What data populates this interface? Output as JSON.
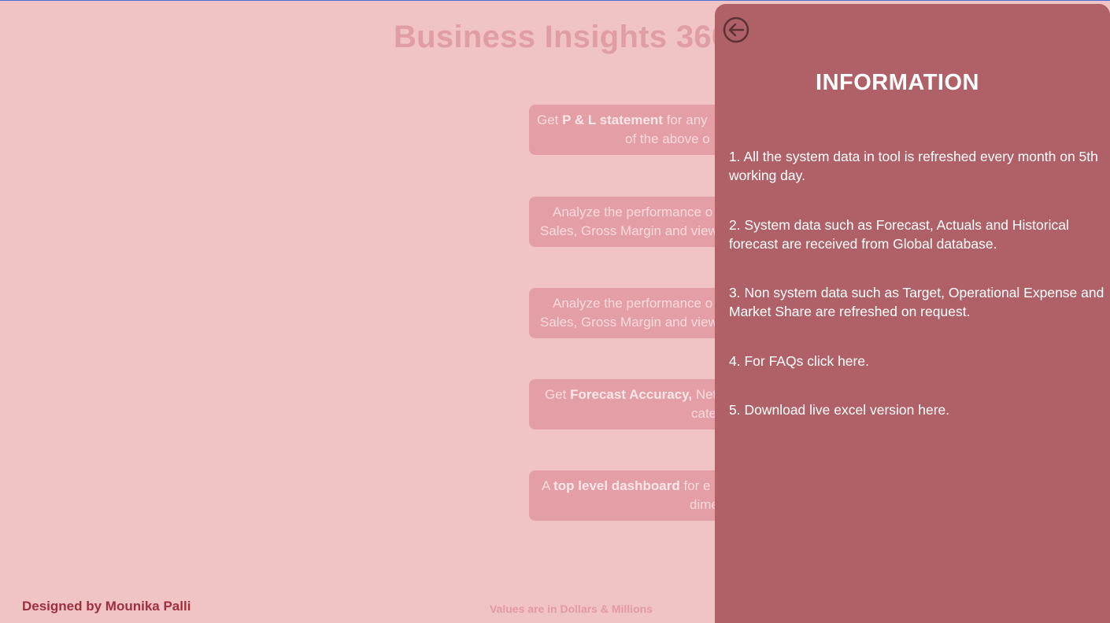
{
  "page": {
    "title": "Business Insights 360",
    "designer": "Designed by Mounika Palli",
    "footnote": "Values are in Dollars & Millions"
  },
  "cards": [
    {
      "pre": "Get ",
      "bold": "P & L statement",
      "post": " for any",
      "line2": "of the above o"
    },
    {
      "pre": "Analyze the performance o",
      "bold": "",
      "post": "",
      "line2": "Sales, Gross Margin and view"
    },
    {
      "pre": "Analyze the performance o",
      "bold": "",
      "post": "",
      "line2": "Sales, Gross Margin and view"
    },
    {
      "pre": "Get ",
      "bold": "Forecast Accuracy,",
      "post": " Net",
      "line2": "cate"
    },
    {
      "pre": "A ",
      "bold": "top level dashboard",
      "post": " for e",
      "line2": "dime"
    }
  ],
  "info_panel": {
    "heading": "INFORMATION",
    "back_icon": "back-arrow-circle-icon",
    "items": [
      "1. All the system data in tool is refreshed every month on 5th working day.",
      "2.  System data such as Forecast, Actuals and Historical forecast are received from Global database.",
      "3.  Non system data such as Target, Operational Expense and Market Share are refreshed on request.",
      "4. For FAQs click here.",
      "5. Download live excel version here."
    ]
  },
  "colors": {
    "background": "#f0c3c4",
    "panel": "#b06167",
    "card": "#e39ea6",
    "designer_text": "#9f2f3f"
  }
}
